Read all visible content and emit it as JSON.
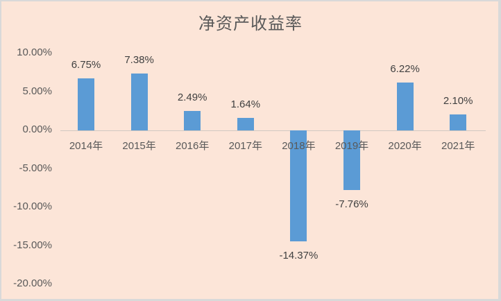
{
  "chart_data": {
    "type": "bar",
    "title": "净资产收益率",
    "xlabel": "",
    "ylabel": "",
    "categories": [
      "2014年",
      "2015年",
      "2016年",
      "2017年",
      "2018年",
      "2019年",
      "2020年",
      "2021年"
    ],
    "values": [
      6.75,
      7.38,
      2.49,
      1.64,
      -14.37,
      -7.76,
      6.22,
      2.1
    ],
    "data_labels": [
      "6.75%",
      "7.38%",
      "2.49%",
      "1.64%",
      "-14.37%",
      "-7.76%",
      "6.22%",
      "2.10%"
    ],
    "yticks": [
      "10.00%",
      "5.00%",
      "0.00%",
      "-5.00%",
      "-10.00%",
      "-15.00%",
      "-20.00%"
    ],
    "ylim": [
      -20,
      10
    ],
    "grid": false,
    "legend": null,
    "bar_color": "#5b9bd5",
    "background_color": "#fce5d8"
  }
}
